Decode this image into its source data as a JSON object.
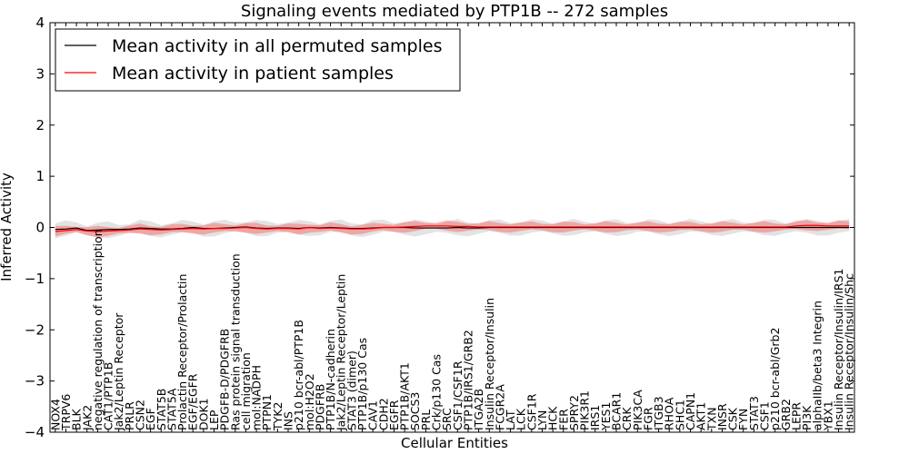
{
  "chart_data": {
    "type": "line",
    "title": "Signaling events mediated by PTP1B -- 272 samples",
    "xlabel": "Cellular Entities",
    "ylabel": "Inferred Activity",
    "ylim": [
      -4,
      4
    ],
    "yticks": [
      -4,
      -3,
      -2,
      -1,
      0,
      1,
      2,
      3,
      4
    ],
    "ytick_labels": [
      "−4",
      "−3",
      "−2",
      "−1",
      "0",
      "1",
      "2",
      "3",
      "4"
    ],
    "grid": false,
    "legend_position": "top-left",
    "categories": [
      "NOX4",
      "TRPV6",
      "BLK",
      "JAK2",
      "negative regulation of transcription",
      "CAT1/PTP1B",
      "Jak2/Leptin Receptor",
      "PRLR",
      "CSN2",
      "EGF",
      "STAT5B",
      "STAT5A",
      "Prolactin Receptor/Prolactin",
      "EGF/EGFR",
      "DOK1",
      "LEP",
      "PDGFB-D/PDGFRB",
      "Ras protein signal transduction",
      "cell migration",
      "mol:NADPH",
      "PTPN1",
      "TYK2",
      "INS",
      "p210 bcr-abl/PTP1B",
      "mol:H2O2",
      "PDGFRB",
      "PTP1B/N-cadherin",
      "Jak2/Leptin Receptor/Leptin",
      "STAT3 (dimer)",
      "PTP1B/p130 Cas",
      "CAV1",
      "CDH2",
      "EGFR",
      "PTP1B/AKT1",
      "SOCS3",
      "PRL",
      "Crk/p130 Cas",
      "SRC",
      "CSF1/CSF1R",
      "PTP1B/IRS1/GRB2",
      "ITGA2B",
      "Insulin Receptor/Insulin",
      "FCGR2A",
      "LAT",
      "LCK",
      "CSF1R",
      "LYN",
      "HCK",
      "FER",
      "SPRY2",
      "PIK3R1",
      "IRS1",
      "YES1",
      "BCAR1",
      "CRK",
      "PIK3CA",
      "FGR",
      "ITGB3",
      "RHOA",
      "SHC1",
      "CAPN1",
      "AKT1",
      "TXN",
      "INSR",
      "CSK",
      "FYN",
      "STAT3",
      "CSF1",
      "p210 bcr-abl/Grb2",
      "GRB2",
      "LEPR",
      "PI3K",
      "alphaIIb/beta3 Integrin",
      "YBX1",
      "Insulin Receptor/Insulin/IRS1",
      "Insulin Receptor/Insulin/Shc"
    ],
    "series": [
      {
        "name": "Mean activity in all permuted samples",
        "color": "#000000",
        "values": [
          -0.04,
          -0.03,
          -0.01,
          -0.06,
          -0.05,
          -0.04,
          -0.04,
          -0.03,
          -0.01,
          -0.02,
          -0.03,
          -0.03,
          -0.02,
          0.0,
          -0.02,
          -0.02,
          -0.01,
          0.0,
          0.01,
          -0.01,
          -0.02,
          -0.01,
          -0.01,
          -0.02,
          0.0,
          -0.01,
          0.0,
          -0.01,
          -0.02,
          -0.02,
          -0.01,
          0.0,
          0.0,
          0.0,
          -0.01,
          -0.01,
          -0.01,
          -0.01,
          0.0,
          -0.01,
          -0.01,
          0.0,
          0.0,
          0.0,
          0.0,
          0.0,
          0.0,
          0.0,
          0.0,
          0.0,
          0.0,
          0.0,
          0.0,
          0.0,
          0.0,
          0.0,
          0.0,
          0.0,
          0.0,
          0.0,
          0.0,
          0.0,
          0.0,
          0.0,
          0.0,
          0.0,
          0.0,
          0.0,
          0.0,
          0.0,
          0.0,
          0.0,
          0.0,
          0.0,
          0.0,
          0.0
        ],
        "band": 0.12
      },
      {
        "name": "Mean activity in patient samples",
        "color": "#ff0000",
        "values": [
          -0.08,
          -0.06,
          -0.04,
          -0.07,
          -0.08,
          -0.07,
          -0.06,
          -0.05,
          -0.03,
          -0.04,
          -0.05,
          -0.04,
          -0.03,
          -0.02,
          -0.03,
          -0.02,
          -0.02,
          -0.01,
          0.0,
          -0.02,
          -0.03,
          -0.02,
          -0.02,
          -0.03,
          0.0,
          -0.02,
          -0.01,
          -0.02,
          -0.03,
          -0.03,
          -0.02,
          0.0,
          0.0,
          0.01,
          0.02,
          0.03,
          0.03,
          0.03,
          0.02,
          0.02,
          0.01,
          0.01,
          0.01,
          0.01,
          0.01,
          0.01,
          0.01,
          0.01,
          0.01,
          0.01,
          0.01,
          0.01,
          0.01,
          0.01,
          0.01,
          0.01,
          0.01,
          0.01,
          0.01,
          0.01,
          0.01,
          0.01,
          0.01,
          0.01,
          0.01,
          0.01,
          0.01,
          0.01,
          0.01,
          0.01,
          0.03,
          0.04,
          0.04,
          0.03,
          0.03,
          0.03
        ],
        "band": 0.08
      }
    ]
  }
}
